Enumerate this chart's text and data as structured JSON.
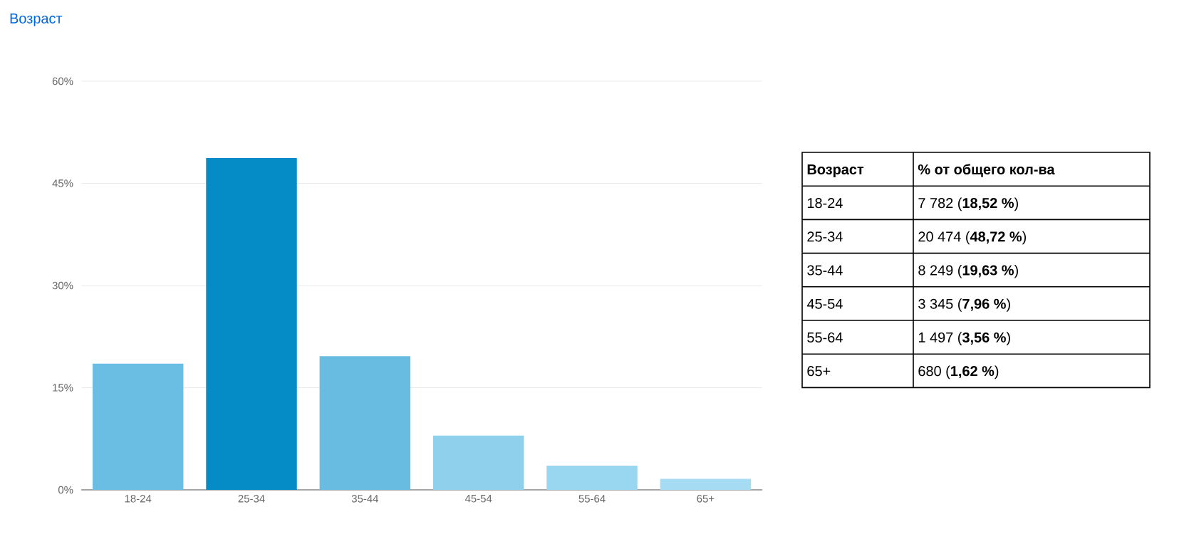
{
  "chart_data": {
    "type": "bar",
    "title": "Возраст",
    "categories": [
      "18-24",
      "25-34",
      "35-44",
      "45-54",
      "55-64",
      "65+"
    ],
    "values": [
      18.52,
      48.72,
      19.63,
      7.96,
      3.56,
      1.62
    ],
    "colors": [
      "#6abde3",
      "#058cc7",
      "#68bbe1",
      "#8fd1ed",
      "#99d6f0",
      "#a5dcf3"
    ],
    "annotations": [
      "**Возраст**",
      "**% от общего кол-ва**",
      "7 782 (**18,52 %**)",
      "20 474 (**48,72 %**)",
      "8 249 (**19,63 %**)",
      "3 345 (**7,96 %**)",
      "1 497 (**3,56 %**)",
      "680 (**1,62 %**)"
    ],
    "ylim": [
      0,
      60
    ],
    "yticks": [
      {
        "value": 0,
        "label": "0%"
      },
      {
        "value": 15,
        "label": "15%"
      },
      {
        "value": 30,
        "label": "30%"
      },
      {
        "value": 45,
        "label": "45%"
      },
      {
        "value": 60,
        "label": "60%"
      }
    ],
    "grid": "y"
  }
}
